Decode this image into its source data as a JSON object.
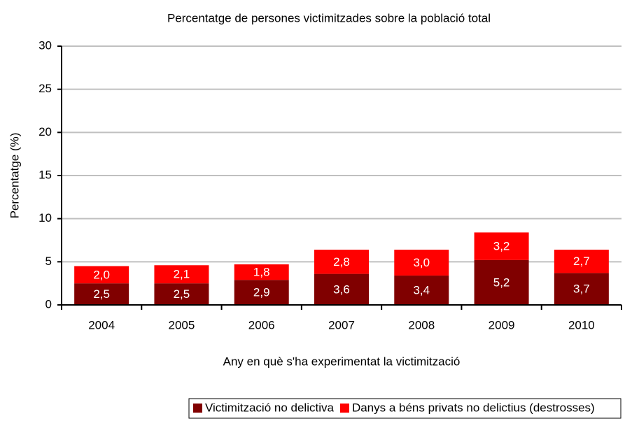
{
  "chart_data": {
    "type": "stacked_bar",
    "title": "Percentatge de persones victimitzades sobre la població total",
    "x_label": "Any en què s'ha experimentat la victimització",
    "y_label": "Percentatge (%)",
    "categories": [
      "2004",
      "2005",
      "2006",
      "2007",
      "2008",
      "2009",
      "2010"
    ],
    "series": [
      {
        "name": "Victimització no delictiva",
        "color": "#800000",
        "values": [
          2.5,
          2.5,
          2.9,
          3.6,
          3.4,
          5.2,
          3.7
        ],
        "value_labels": [
          "2,5",
          "2,5",
          "2,9",
          "3,6",
          "3,4",
          "5,2",
          "3,7"
        ]
      },
      {
        "name": "Danys a béns privats no delictius (destrosses)",
        "color": "#ff0000",
        "values": [
          2.0,
          2.1,
          1.8,
          2.8,
          3.0,
          3.2,
          2.7
        ],
        "value_labels": [
          "2,0",
          "2,1",
          "1,8",
          "2,8",
          "3,0",
          "3,2",
          "2,7"
        ]
      }
    ],
    "ylim": [
      0,
      30
    ],
    "yticks": [
      0,
      5,
      10,
      15,
      20,
      25,
      30
    ],
    "grid": true,
    "legend": "bottom"
  }
}
